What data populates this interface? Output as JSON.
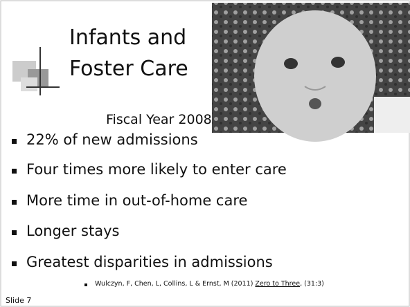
{
  "slide": {
    "title_lines": [
      "Infants and",
      "Foster Care"
    ],
    "subtitle": "Fiscal Year 2008",
    "bullets": [
      "22% of new admissions",
      "Four times more likely to enter care",
      "More time in out-of-home care",
      "Longer stays",
      "Greatest disparities in admissions"
    ],
    "citation": {
      "before": "Wulczyn, F, Chen, L, Collins, L & Ernst, M (2011) ",
      "source": "Zero to Three",
      "after": ", (31:3)"
    },
    "slide_label": "Slide 7"
  }
}
